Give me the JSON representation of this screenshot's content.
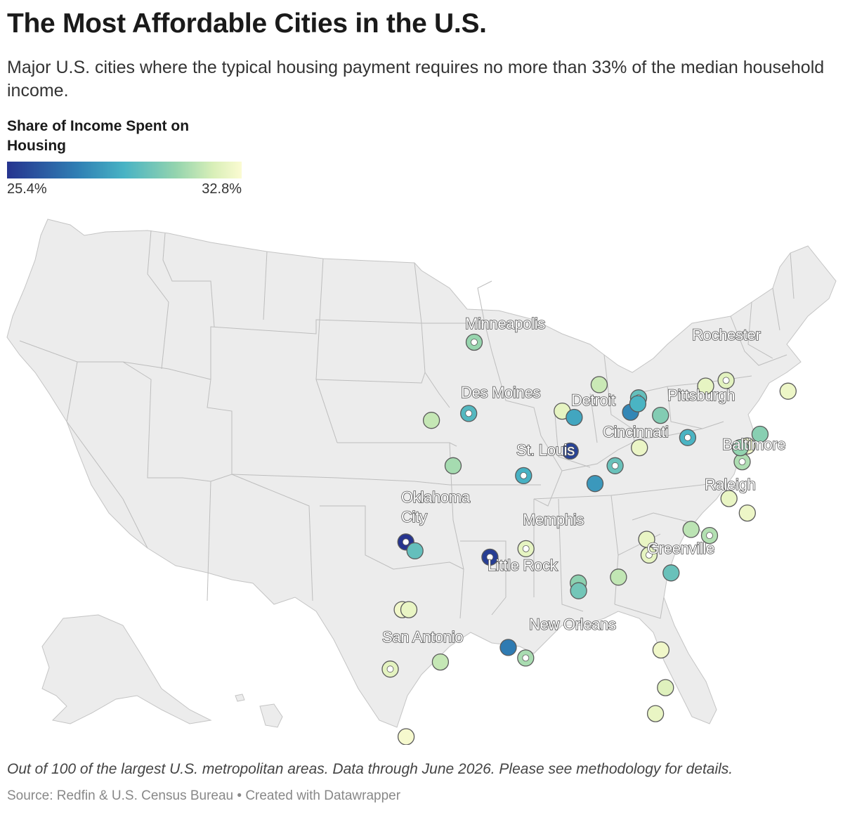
{
  "title": "The Most Affordable Cities in the U.S.",
  "subtitle": "Major U.S. cities where the typical housing payment requires no more than 33% of the median household income.",
  "legend": {
    "title": "Share of Income Spent on Housing",
    "min_label": "25.4%",
    "max_label": "32.8%",
    "min_value": 25.4,
    "max_value": 32.8,
    "colors": [
      "#26348f",
      "#2f7fb4",
      "#48b3c4",
      "#94d4ae",
      "#d9efb8",
      "#fbfbd2"
    ]
  },
  "note": "Out of 100 of the largest U.S. metropolitan areas. Data through June 2026. Please see methodology for details.",
  "source": "Source: Redfin & U.S. Census Bureau • Created with Datawrapper",
  "map_fill": "#ececec",
  "map_border": "#b8b8b8",
  "labels": {
    "minneapolis": "Minneapolis",
    "rochester": "Rochester",
    "des_moines": "Des Moines",
    "detroit": "Detroit",
    "pittsburgh": "Pittsburgh",
    "cincinnati": "Cincinnati",
    "st_louis": "St. Louis",
    "baltimore": "Baltimore",
    "raleigh": "Raleigh",
    "oklahoma_city": "Oklahoma City",
    "memphis": "Memphis",
    "greenville": "Greenville",
    "little_rock": "Little Rock",
    "new_orleans": "New Orleans",
    "san_antonio": "San Antonio"
  },
  "chart_data": {
    "type": "scatter",
    "legend_placement": "top-left",
    "points": [
      {
        "lon": -93.27,
        "lat": 44.98,
        "value": 29.9,
        "labeled": true
      },
      {
        "lon": -93.61,
        "lat": 41.59,
        "value": 28.6,
        "labeled": true
      },
      {
        "lon": -97.52,
        "lat": 35.47,
        "value": 25.4,
        "labeled": true
      },
      {
        "lon": -92.29,
        "lat": 34.75,
        "value": 25.6,
        "labeled": true
      },
      {
        "lon": -90.2,
        "lat": 38.63,
        "value": 28.3,
        "labeled": true
      },
      {
        "lon": -90.05,
        "lat": 35.15,
        "value": 31.9,
        "labeled": true
      },
      {
        "lon": -90.07,
        "lat": 29.95,
        "value": 30.3,
        "labeled": true
      },
      {
        "lon": -98.49,
        "lat": 29.42,
        "value": 31.8,
        "labeled": true
      },
      {
        "lon": -83.05,
        "lat": 42.33,
        "value": 28.9,
        "labeled": true
      },
      {
        "lon": -84.51,
        "lat": 39.1,
        "value": 29.0,
        "labeled": true
      },
      {
        "lon": -80.0,
        "lat": 40.44,
        "value": 28.4,
        "labeled": true
      },
      {
        "lon": -77.61,
        "lat": 43.16,
        "value": 31.7,
        "labeled": true
      },
      {
        "lon": -76.61,
        "lat": 39.29,
        "value": 30.4,
        "labeled": true
      },
      {
        "lon": -78.64,
        "lat": 35.78,
        "value": 30.5,
        "labeled": true
      },
      {
        "lon": -82.4,
        "lat": 34.85,
        "value": 31.9,
        "labeled": true
      },
      {
        "lon": -95.93,
        "lat": 41.26,
        "value": 30.9,
        "labeled": false
      },
      {
        "lon": -94.58,
        "lat": 39.1,
        "value": 30.2,
        "labeled": false
      },
      {
        "lon": -96.95,
        "lat": 35.05,
        "value": 28.9,
        "labeled": false
      },
      {
        "lon": -87.3,
        "lat": 39.8,
        "value": 25.7,
        "labeled": false
      },
      {
        "lon": -85.76,
        "lat": 38.25,
        "value": 27.6,
        "labeled": false
      },
      {
        "lon": -86.8,
        "lat": 33.52,
        "value": 29.7,
        "labeled": false
      },
      {
        "lon": -85.5,
        "lat": 42.96,
        "value": 31.0,
        "labeled": false
      },
      {
        "lon": -87.8,
        "lat": 41.7,
        "value": 31.9,
        "labeled": false
      },
      {
        "lon": -87.05,
        "lat": 41.4,
        "value": 28.0,
        "labeled": false
      },
      {
        "lon": -83.55,
        "lat": 41.65,
        "value": 27.1,
        "labeled": false
      },
      {
        "lon": -83.1,
        "lat": 42.05,
        "value": 28.4,
        "labeled": false
      },
      {
        "lon": -81.69,
        "lat": 41.5,
        "value": 29.5,
        "labeled": false
      },
      {
        "lon": -83.0,
        "lat": 39.96,
        "value": 32.1,
        "labeled": false
      },
      {
        "lon": -78.88,
        "lat": 42.89,
        "value": 31.9,
        "labeled": false
      },
      {
        "lon": -73.76,
        "lat": 42.65,
        "value": 32.2,
        "labeled": false
      },
      {
        "lon": -76.3,
        "lat": 40.04,
        "value": 32.3,
        "labeled": false
      },
      {
        "lon": -76.73,
        "lat": 39.96,
        "value": 29.8,
        "labeled": false
      },
      {
        "lon": -75.5,
        "lat": 40.6,
        "value": 29.6,
        "labeled": false
      },
      {
        "lon": -77.43,
        "lat": 37.54,
        "value": 32.0,
        "labeled": false
      },
      {
        "lon": -76.29,
        "lat": 36.85,
        "value": 32.2,
        "labeled": false
      },
      {
        "lon": -79.79,
        "lat": 36.07,
        "value": 30.7,
        "labeled": false
      },
      {
        "lon": -82.55,
        "lat": 35.6,
        "value": 32.0,
        "labeled": false
      },
      {
        "lon": -84.3,
        "lat": 33.8,
        "value": 30.8,
        "labeled": false
      },
      {
        "lon": -86.78,
        "lat": 33.15,
        "value": 29.2,
        "labeled": false
      },
      {
        "lon": -81.03,
        "lat": 34.0,
        "value": 29.0,
        "labeled": false
      },
      {
        "lon": -81.66,
        "lat": 30.33,
        "value": 32.3,
        "labeled": false
      },
      {
        "lon": -81.38,
        "lat": 28.54,
        "value": 31.6,
        "labeled": false
      },
      {
        "lon": -82.0,
        "lat": 27.3,
        "value": 32.0,
        "labeled": false
      },
      {
        "lon": -91.15,
        "lat": 30.45,
        "value": 26.8,
        "labeled": false
      },
      {
        "lon": -95.37,
        "lat": 29.76,
        "value": 30.9,
        "labeled": false
      },
      {
        "lon": -97.74,
        "lat": 32.25,
        "value": 32.4,
        "labeled": false
      },
      {
        "lon": -97.33,
        "lat": 32.25,
        "value": 32.0,
        "labeled": false
      },
      {
        "lon": -97.5,
        "lat": 26.2,
        "value": 32.6,
        "labeled": false
      }
    ]
  }
}
